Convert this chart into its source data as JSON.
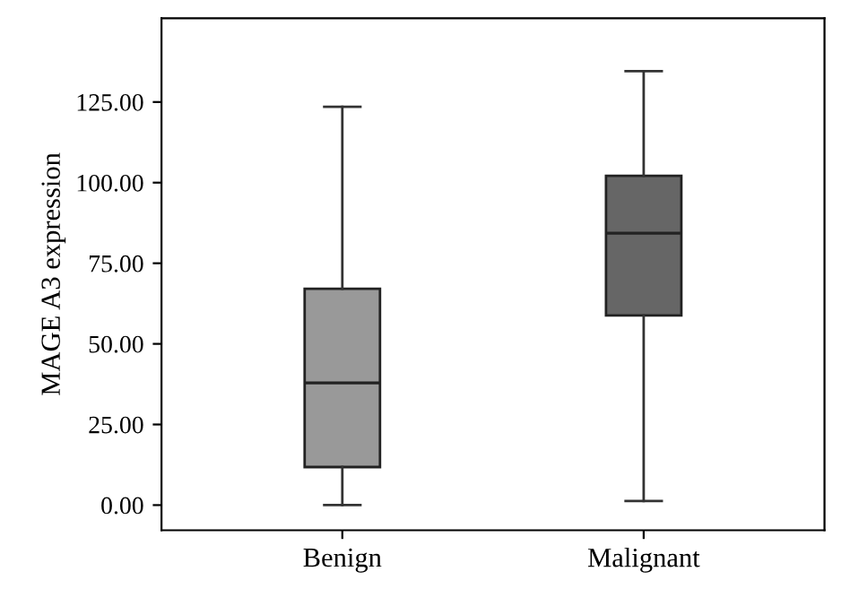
{
  "chart_data": {
    "type": "box",
    "ylabel": "MAGE A3 expression",
    "categories": [
      "Benign",
      "Malignant"
    ],
    "boxes": [
      {
        "low": 0,
        "q1": 11.8,
        "median": 37.9,
        "q3": 67.1,
        "high": 123.5
      },
      {
        "low": 1.3,
        "q1": 58.8,
        "median": 84.3,
        "q3": 102.1,
        "high": 134.6
      }
    ],
    "colors": [
      "#999999",
      "#666666"
    ],
    "ylim": [
      -7.8,
      151
    ],
    "yticks": [
      {
        "value": 0,
        "label": "0.00"
      },
      {
        "value": 25,
        "label": "25.00"
      },
      {
        "value": 50,
        "label": "50.00"
      },
      {
        "value": 75,
        "label": "75.00"
      },
      {
        "value": 100,
        "label": "100.00"
      },
      {
        "value": 125,
        "label": "125.00"
      }
    ],
    "grid": false,
    "legend": false
  }
}
